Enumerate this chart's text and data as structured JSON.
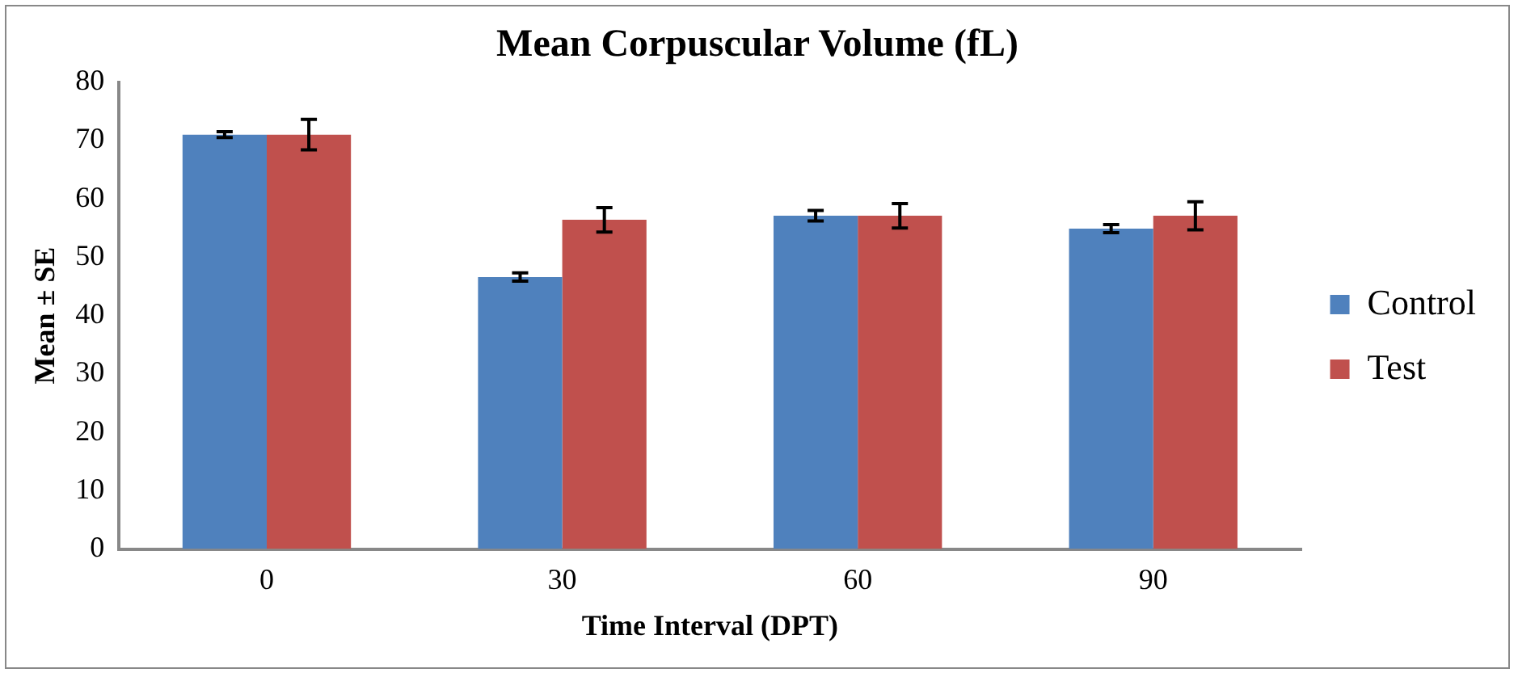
{
  "chart_data": {
    "type": "bar",
    "title": "Mean Corpuscular Volume (fL)",
    "xlabel": "Time Interval (DPT)",
    "ylabel": "Mean ± SE",
    "categories": [
      "0",
      "30",
      "60",
      "90"
    ],
    "series": [
      {
        "name": "Control",
        "color": "#4f81bd",
        "values": [
          71.0,
          46.6,
          57.1,
          54.9
        ],
        "errors": [
          0.5,
          0.7,
          0.9,
          0.7
        ]
      },
      {
        "name": "Test",
        "color": "#c0504d",
        "values": [
          71.0,
          56.4,
          57.1,
          57.1
        ],
        "errors": [
          2.6,
          2.1,
          2.1,
          2.4
        ]
      }
    ],
    "ylim": [
      0,
      80
    ],
    "yticks": [
      0,
      10,
      20,
      30,
      40,
      50,
      60,
      70,
      80
    ],
    "grid": false,
    "legend": "right"
  }
}
